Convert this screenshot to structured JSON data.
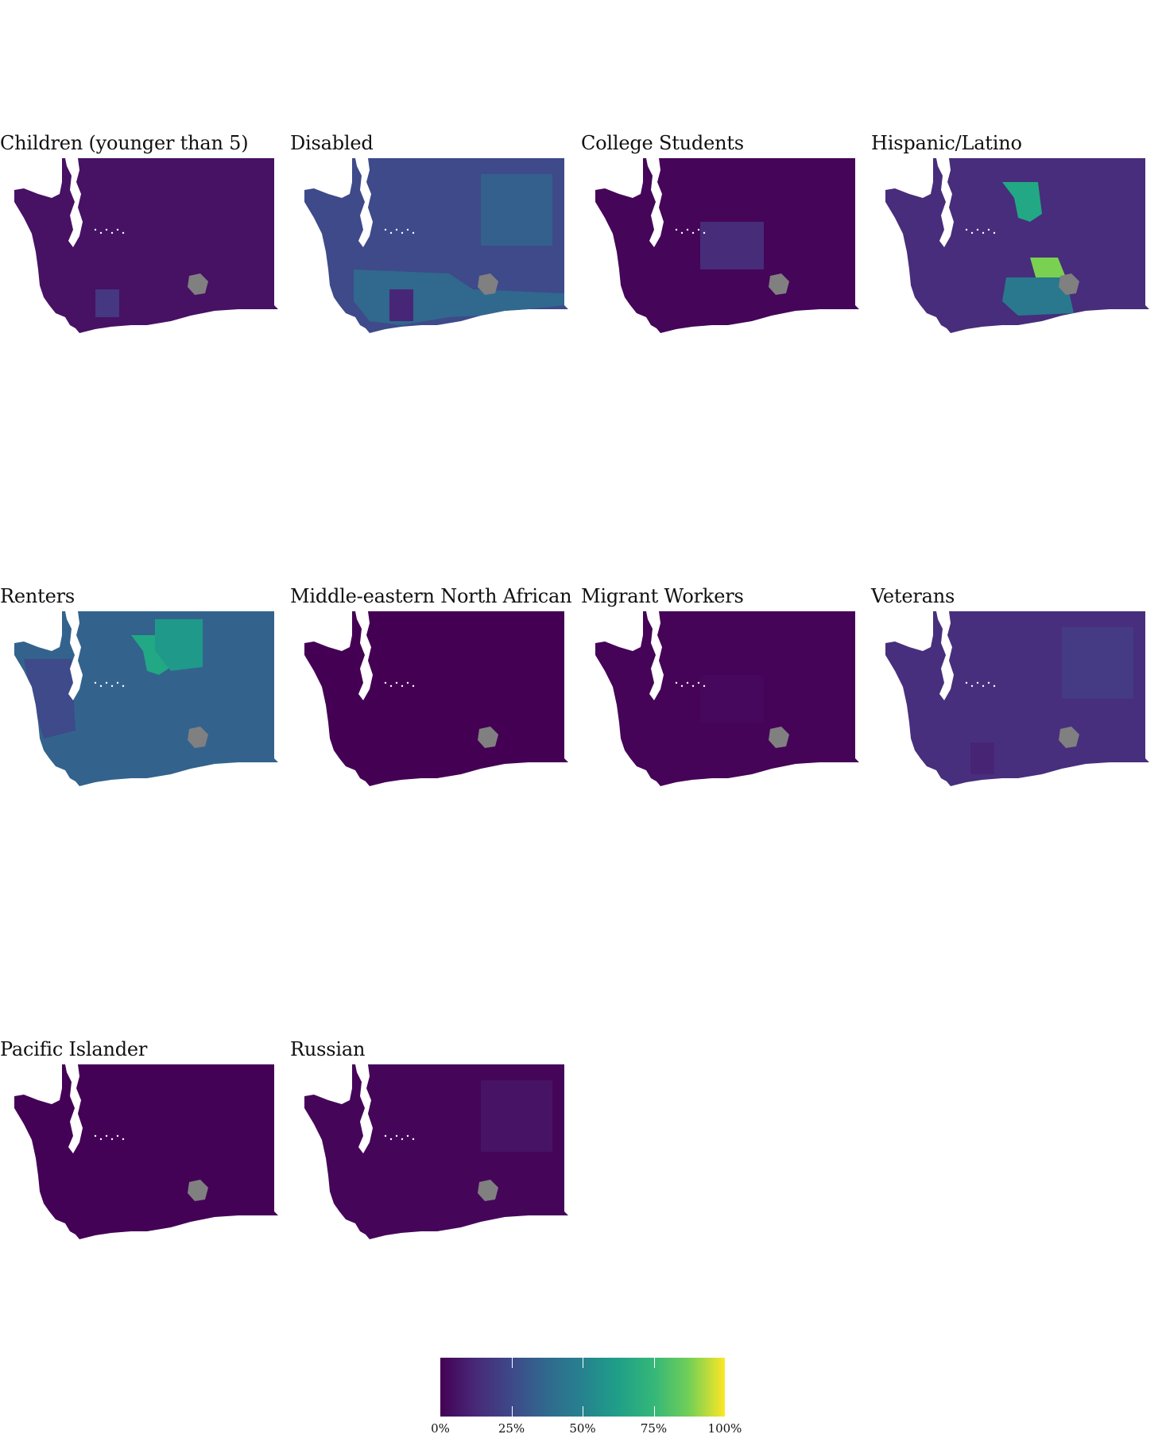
{
  "panels": [
    {
      "title": "Children (younger than 5)",
      "base": "#471164",
      "patches": [
        {
          "fill": "#453781",
          "shape": "sw"
        }
      ]
    },
    {
      "title": "Disabled",
      "base": "#3e4a89",
      "patches": [
        {
          "fill": "#31688e",
          "shape": "south"
        },
        {
          "fill": "#482677",
          "shape": "swbox"
        },
        {
          "fill": "#34608d",
          "shape": "east"
        }
      ]
    },
    {
      "title": "College Students",
      "base": "#450559",
      "patches": [
        {
          "fill": "#472c7a",
          "shape": "center"
        }
      ]
    },
    {
      "title": "Hispanic/Latino",
      "base": "#472d7b",
      "patches": [
        {
          "fill": "#22a884",
          "shape": "yakima"
        },
        {
          "fill": "#7ad151",
          "shape": "yakima2"
        },
        {
          "fill": "#bddf26",
          "shape": "tricities"
        },
        {
          "fill": "#2a788e",
          "shape": "southband"
        }
      ]
    },
    {
      "title": "Renters",
      "base": "#33638d",
      "patches": [
        {
          "fill": "#22a884",
          "shape": "yakima"
        },
        {
          "fill": "#1f9a8a",
          "shape": "north"
        },
        {
          "fill": "#3e4a89",
          "shape": "west"
        }
      ]
    },
    {
      "title": "Middle-eastern North African",
      "base": "#440154",
      "patches": []
    },
    {
      "title": "Migrant Workers",
      "base": "#450457",
      "patches": [
        {
          "fill": "#46085c",
          "shape": "center"
        }
      ]
    },
    {
      "title": "Veterans",
      "base": "#472f7d",
      "patches": [
        {
          "fill": "#443b84",
          "shape": "east"
        },
        {
          "fill": "#482475",
          "shape": "swbox"
        }
      ]
    },
    {
      "title": "Pacific Islander",
      "base": "#440256",
      "patches": []
    },
    {
      "title": "Russian",
      "base": "#45065a",
      "patches": [
        {
          "fill": "#471365",
          "shape": "east"
        }
      ]
    }
  ],
  "map": {
    "missing_fill": "#808080",
    "water_fill": "#ffffff"
  },
  "legend": {
    "stops": [
      "#440154",
      "#482878",
      "#3e4989",
      "#31688e",
      "#26828e",
      "#1f9e89",
      "#35b779",
      "#6ece58",
      "#fde725"
    ],
    "ticks": [
      {
        "label": "0%",
        "value": 0
      },
      {
        "label": "25%",
        "value": 0.25
      },
      {
        "label": "50%",
        "value": 0.5
      },
      {
        "label": "75%",
        "value": 0.75
      },
      {
        "label": "100%",
        "value": 1
      }
    ]
  }
}
